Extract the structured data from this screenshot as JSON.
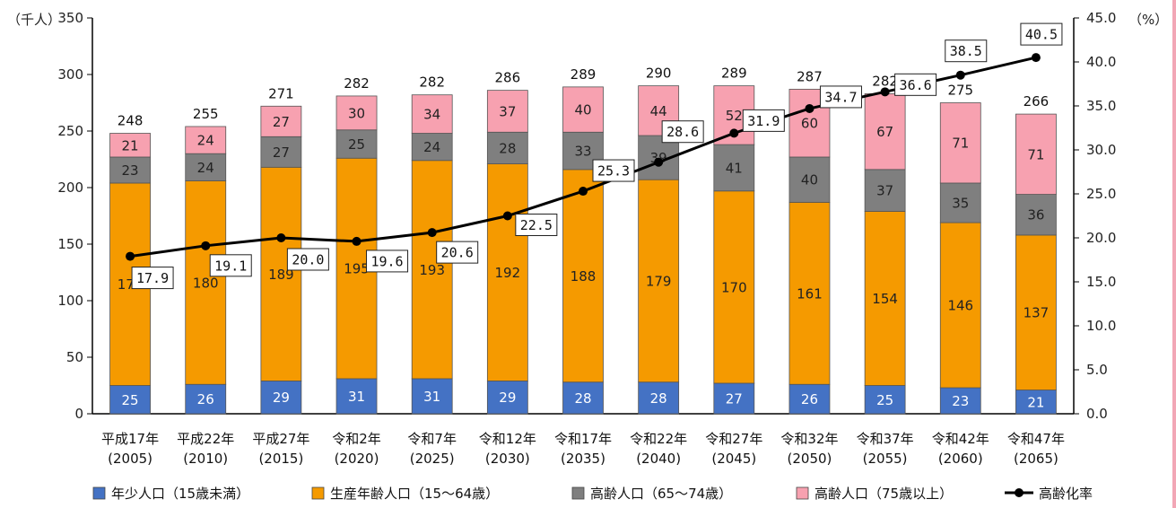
{
  "colors": {
    "children": "#4472c4",
    "working": "#f59a00",
    "elderly_65_74": "#7f7f7f",
    "elderly_75_plus": "#f7a1b0",
    "rate_line": "#000000"
  },
  "chart_data": {
    "type": "bar",
    "stacked": true,
    "left_axis_unit": "（千人）",
    "right_axis_unit": "（%）",
    "ylim": [
      0,
      350
    ],
    "y_ticks": [
      "0",
      "50",
      "100",
      "150",
      "200",
      "250",
      "300",
      "350"
    ],
    "y2lim": [
      0,
      45
    ],
    "y2_ticks": [
      "0.0",
      "5.0",
      "10.0",
      "15.0",
      "20.0",
      "25.0",
      "30.0",
      "35.0",
      "40.0",
      "45.0"
    ],
    "categories": [
      {
        "era": "平成17年",
        "year": "(2005)"
      },
      {
        "era": "平成22年",
        "year": "(2010)"
      },
      {
        "era": "平成27年",
        "year": "(2015)"
      },
      {
        "era": "令和2年",
        "year": "(2020)"
      },
      {
        "era": "令和7年",
        "year": "(2025)"
      },
      {
        "era": "令和12年",
        "year": "(2030)"
      },
      {
        "era": "令和17年",
        "year": "(2035)"
      },
      {
        "era": "令和22年",
        "year": "(2040)"
      },
      {
        "era": "令和27年",
        "year": "(2045)"
      },
      {
        "era": "令和32年",
        "year": "(2050)"
      },
      {
        "era": "令和37年",
        "year": "(2055)"
      },
      {
        "era": "令和42年",
        "year": "(2060)"
      },
      {
        "era": "令和47年",
        "year": "(2065)"
      }
    ],
    "series": [
      {
        "name": "年少人口（15歳未満）",
        "color_key": "children",
        "values": [
          25,
          26,
          29,
          31,
          31,
          29,
          28,
          28,
          27,
          26,
          25,
          23,
          21
        ]
      },
      {
        "name": "生産年齢人口（15～64歳）",
        "color_key": "working",
        "values": [
          179,
          180,
          189,
          195,
          193,
          192,
          188,
          179,
          170,
          161,
          154,
          146,
          137
        ]
      },
      {
        "name": "高齢人口（65～74歳）",
        "color_key": "elderly_65_74",
        "values": [
          23,
          24,
          27,
          25,
          24,
          28,
          33,
          39,
          41,
          40,
          37,
          35,
          36
        ]
      },
      {
        "name": "高齢人口（75歳以上）",
        "color_key": "elderly_75_plus",
        "values": [
          21,
          24,
          27,
          30,
          34,
          37,
          40,
          44,
          52,
          60,
          67,
          71,
          71
        ]
      }
    ],
    "totals": [
      248,
      255,
      271,
      282,
      282,
      286,
      289,
      290,
      289,
      287,
      282,
      275,
      266
    ],
    "line_series": {
      "name": "高齢化率",
      "axis": "right",
      "values": [
        17.9,
        19.1,
        20.0,
        19.6,
        20.6,
        22.5,
        25.3,
        28.6,
        31.9,
        34.7,
        36.6,
        38.5,
        40.5
      ],
      "labels": [
        "17.9",
        "19.1",
        "20.0",
        "19.6",
        "20.6",
        "22.5",
        "25.3",
        "28.6",
        "31.9",
        "34.7",
        "36.6",
        "38.5",
        "40.5"
      ]
    },
    "legend_position": "bottom"
  }
}
